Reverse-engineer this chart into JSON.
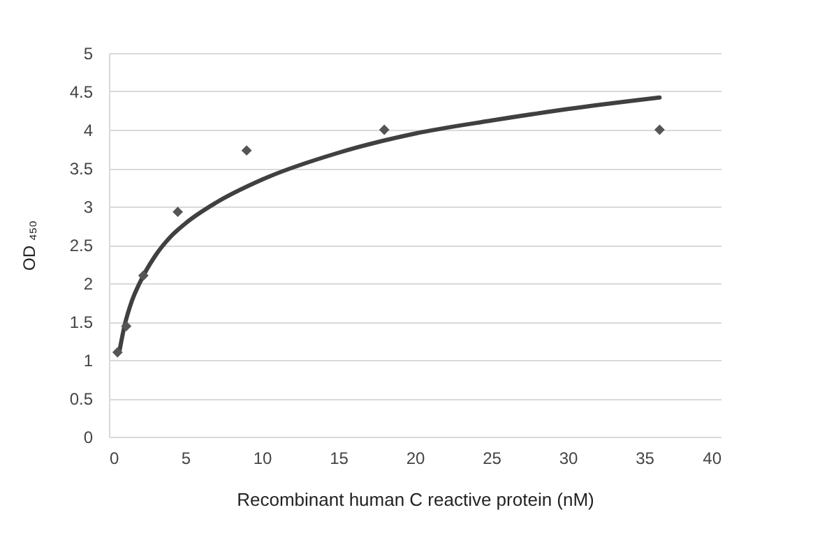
{
  "chart_data": {
    "type": "scatter",
    "xlabel": "Recombinant human C reactive protein (nM)",
    "ylabel": "OD ₄₅₀",
    "xlim": [
      0,
      40
    ],
    "xticks": [
      0,
      5,
      10,
      15,
      20,
      25,
      30,
      35,
      40
    ],
    "ylim": [
      0,
      5
    ],
    "yticks": [
      0,
      0.5,
      1,
      1.5,
      2,
      2.5,
      3,
      3.5,
      4,
      4.5,
      5
    ],
    "grid": "y",
    "series": [
      {
        "marker": "diamond",
        "color": "#555555",
        "x": [
          0.56,
          1.13,
          2.25,
          4.5,
          9,
          18,
          36
        ],
        "values": [
          1.1,
          1.44,
          2.1,
          2.93,
          3.73,
          4.0,
          4.0
        ]
      },
      {
        "type": "line",
        "color": "#404040",
        "x": [
          0.7,
          1,
          1.5,
          2,
          3,
          4,
          5,
          7,
          10,
          15,
          20,
          25,
          30,
          36
        ],
        "values": [
          1.13,
          1.43,
          1.77,
          2.0,
          2.35,
          2.6,
          2.78,
          3.05,
          3.35,
          3.7,
          3.95,
          4.12,
          4.27,
          4.42
        ]
      }
    ]
  }
}
